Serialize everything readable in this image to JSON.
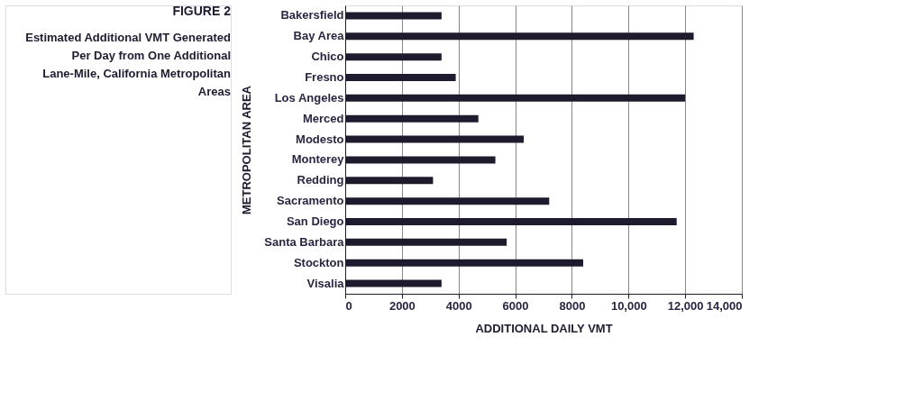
{
  "chart_data": {
    "type": "bar",
    "orientation": "horizontal",
    "title": "FIGURE 2",
    "subtitle": "Estimated Additional VMT Generated Per Day from One Additional Lane-Mile, California Metropolitan Areas",
    "xlabel": "ADDITIONAL DAILY VMT",
    "ylabel": "METROPOLITAN AREA",
    "categories": [
      "Bakersfield",
      "Bay Area",
      "Chico",
      "Fresno",
      "Los Angeles",
      "Merced",
      "Modesto",
      "Monterey",
      "Redding",
      "Sacramento",
      "San Diego",
      "Santa Barbara",
      "Stockton",
      "Visalia"
    ],
    "values": [
      3400,
      12300,
      3400,
      3900,
      12000,
      4700,
      6300,
      5300,
      3100,
      7200,
      11700,
      5700,
      8400,
      3400
    ],
    "color": "#1f1a2e",
    "xlim": [
      0,
      14000
    ],
    "xticks": [
      0,
      2000,
      4000,
      6000,
      8000,
      {
        "value": 10000,
        "label": "10,000"
      },
      {
        "value": 12000,
        "label": "12,000"
      },
      {
        "value": 14000,
        "label": "14,000"
      }
    ],
    "grid": "x"
  }
}
